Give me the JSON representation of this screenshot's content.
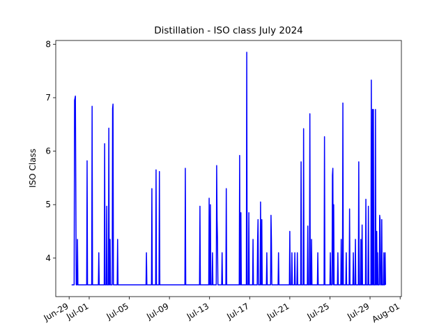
{
  "chart_data": {
    "type": "line",
    "title": "Distillation - ISO class July 2024",
    "y_label": "ISO Class",
    "color": "#0000ff",
    "xlim": [
      "2024-06-27T16:00",
      "2024-08-01T03:00"
    ],
    "ylim": [
      3.28,
      8.07
    ],
    "yticks": [
      4,
      5,
      6,
      7,
      8
    ],
    "xticks": [
      {
        "value": "2024-06-29T00:00",
        "label": "Jun-29"
      },
      {
        "value": "2024-07-01T00:00",
        "label": "Jul-01"
      },
      {
        "value": "2024-07-05T00:00",
        "label": "Jul-05"
      },
      {
        "value": "2024-07-09T00:00",
        "label": "Jul-09"
      },
      {
        "value": "2024-07-13T00:00",
        "label": "Jul-13"
      },
      {
        "value": "2024-07-17T00:00",
        "label": "Jul-17"
      },
      {
        "value": "2024-07-21T00:00",
        "label": "Jul-21"
      },
      {
        "value": "2024-07-25T00:00",
        "label": "Jul-25"
      },
      {
        "value": "2024-07-29T00:00",
        "label": "Jul-29"
      },
      {
        "value": "2024-08-01T00:00",
        "label": "Aug-01"
      }
    ],
    "x": [
      "2024-06-29T06:00",
      "2024-06-29T12:00",
      "2024-06-29T13:00",
      "2024-06-29T15:00",
      "2024-06-29T17:00",
      "2024-06-29T19:00",
      "2024-06-29T20:00",
      "2024-06-29T21:00",
      "2024-06-30T18:00",
      "2024-06-30T19:00",
      "2024-06-30T20:00",
      "2024-07-01T06:00",
      "2024-07-01T07:00",
      "2024-07-01T08:00",
      "2024-07-01T22:00",
      "2024-07-01T23:00",
      "2024-07-02T00:00",
      "2024-07-02T12:00",
      "2024-07-02T13:00",
      "2024-07-02T14:00",
      "2024-07-02T17:00",
      "2024-07-02T18:00",
      "2024-07-02T19:00",
      "2024-07-02T22:00",
      "2024-07-02T23:00",
      "2024-07-03T00:00",
      "2024-07-03T01:00",
      "2024-07-03T02:00",
      "2024-07-03T03:00",
      "2024-07-03T07:00",
      "2024-07-03T08:00",
      "2024-07-03T09:00",
      "2024-07-03T10:00",
      "2024-07-03T19:00",
      "2024-07-03T20:00",
      "2024-07-03T21:00",
      "2024-07-06T16:00",
      "2024-07-06T17:00",
      "2024-07-06T18:00",
      "2024-07-07T05:00",
      "2024-07-07T06:00",
      "2024-07-07T07:00",
      "2024-07-07T15:00",
      "2024-07-07T16:00",
      "2024-07-07T17:00",
      "2024-07-07T23:00",
      "2024-07-08T00:00",
      "2024-07-08T01:00",
      "2024-07-10T13:00",
      "2024-07-10T14:00",
      "2024-07-10T15:00",
      "2024-07-12T00:00",
      "2024-07-12T01:00",
      "2024-07-12T02:00",
      "2024-07-12T22:00",
      "2024-07-12T23:00",
      "2024-07-13T00:00",
      "2024-07-13T01:00",
      "2024-07-13T02:00",
      "2024-07-13T03:00",
      "2024-07-13T06:00",
      "2024-07-13T07:00",
      "2024-07-13T08:00",
      "2024-07-13T16:00",
      "2024-07-13T17:00",
      "2024-07-13T18:00",
      "2024-07-13T19:00",
      "2024-07-13T20:00",
      "2024-07-14T05:00",
      "2024-07-14T06:00",
      "2024-07-14T07:00",
      "2024-07-14T15:00",
      "2024-07-14T16:00",
      "2024-07-14T17:00",
      "2024-07-15T23:00",
      "2024-07-16T00:00",
      "2024-07-16T01:00",
      "2024-07-16T02:00",
      "2024-07-16T03:00",
      "2024-07-16T04:00",
      "2024-07-16T16:00",
      "2024-07-16T17:00",
      "2024-07-16T18:00",
      "2024-07-16T21:00",
      "2024-07-16T22:00",
      "2024-07-16T23:00",
      "2024-07-17T07:00",
      "2024-07-17T08:00",
      "2024-07-17T09:00",
      "2024-07-17T18:00",
      "2024-07-17T19:00",
      "2024-07-17T20:00",
      "2024-07-17T21:00",
      "2024-07-18T01:00",
      "2024-07-18T02:00",
      "2024-07-18T03:00",
      "2024-07-18T04:00",
      "2024-07-18T05:00",
      "2024-07-18T06:00",
      "2024-07-18T16:00",
      "2024-07-18T17:00",
      "2024-07-18T18:00",
      "2024-07-19T02:00",
      "2024-07-19T03:00",
      "2024-07-19T04:00",
      "2024-07-19T05:00",
      "2024-07-19T20:00",
      "2024-07-19T21:00",
      "2024-07-19T22:00",
      "2024-07-20T23:00",
      "2024-07-21T00:00",
      "2024-07-21T01:00",
      "2024-07-21T04:00",
      "2024-07-21T05:00",
      "2024-07-21T06:00",
      "2024-07-21T11:00",
      "2024-07-21T12:00",
      "2024-07-21T13:00",
      "2024-07-21T17:00",
      "2024-07-21T18:00",
      "2024-07-21T19:00",
      "2024-07-22T02:00",
      "2024-07-22T03:00",
      "2024-07-22T04:00",
      "2024-07-22T08:00",
      "2024-07-22T09:00",
      "2024-07-22T10:00",
      "2024-07-22T18:00",
      "2024-07-22T19:00",
      "2024-07-22T20:00",
      "2024-07-22T23:00",
      "2024-07-23T00:00",
      "2024-07-23T01:00",
      "2024-07-23T03:00",
      "2024-07-23T04:00",
      "2024-07-23T05:00",
      "2024-07-23T18:00",
      "2024-07-23T19:00",
      "2024-07-23T20:00",
      "2024-07-24T10:00",
      "2024-07-24T11:00",
      "2024-07-24T12:00",
      "2024-07-25T00:00",
      "2024-07-25T01:00",
      "2024-07-25T02:00",
      "2024-07-25T05:00",
      "2024-07-25T06:00",
      "2024-07-25T07:00",
      "2024-07-25T08:00",
      "2024-07-25T09:00",
      "2024-07-25T10:00",
      "2024-07-25T18:00",
      "2024-07-25T19:00",
      "2024-07-25T20:00",
      "2024-07-26T02:00",
      "2024-07-26T03:00",
      "2024-07-26T04:00",
      "2024-07-26T06:00",
      "2024-07-26T07:00",
      "2024-07-26T08:00",
      "2024-07-26T14:00",
      "2024-07-26T15:00",
      "2024-07-26T16:00",
      "2024-07-26T22:00",
      "2024-07-26T23:00",
      "2024-07-27T00:00",
      "2024-07-27T07:00",
      "2024-07-27T08:00",
      "2024-07-27T09:00",
      "2024-07-27T12:00",
      "2024-07-27T13:00",
      "2024-07-27T14:00",
      "2024-07-27T20:00",
      "2024-07-27T21:00",
      "2024-07-27T22:00",
      "2024-07-28T01:00",
      "2024-07-28T02:00",
      "2024-07-28T03:00",
      "2024-07-28T04:00",
      "2024-07-28T05:00",
      "2024-07-28T06:00",
      "2024-07-28T13:00",
      "2024-07-28T14:00",
      "2024-07-28T15:00",
      "2024-07-28T19:00",
      "2024-07-28T20:00",
      "2024-07-28T21:00",
      "2024-07-29T02:00",
      "2024-07-29T03:00",
      "2024-07-29T04:00",
      "2024-07-29T05:00",
      "2024-07-29T06:00",
      "2024-07-29T07:00",
      "2024-07-29T08:00",
      "2024-07-29T09:00",
      "2024-07-29T12:00",
      "2024-07-29T13:00",
      "2024-07-29T14:00",
      "2024-07-29T15:00",
      "2024-07-29T16:00",
      "2024-07-29T17:00",
      "2024-07-29T18:00",
      "2024-07-29T19:00",
      "2024-07-29T22:00",
      "2024-07-29T23:00",
      "2024-07-30T00:00",
      "2024-07-30T01:00",
      "2024-07-30T03:00",
      "2024-07-30T04:00",
      "2024-07-30T05:00",
      "2024-07-30T08:00",
      "2024-07-30T09:00",
      "2024-07-30T10:00",
      "2024-07-30T11:00",
      "2024-07-30T12:00",
      "2024-07-30T13:00"
    ],
    "values": [
      3.5,
      3.5,
      6.95,
      7.03,
      3.5,
      3.5,
      4.35,
      3.5,
      3.5,
      5.82,
      3.5,
      3.5,
      6.84,
      3.5,
      3.5,
      4.1,
      3.5,
      3.5,
      6.14,
      3.5,
      3.5,
      4.97,
      3.5,
      3.5,
      6.43,
      3.5,
      3.5,
      4.35,
      3.5,
      3.5,
      6.8,
      6.88,
      3.5,
      3.5,
      4.35,
      3.5,
      3.5,
      4.1,
      3.5,
      3.5,
      5.3,
      3.5,
      3.5,
      5.65,
      3.5,
      3.5,
      5.62,
      3.5,
      3.5,
      5.68,
      3.5,
      3.5,
      4.97,
      3.5,
      3.5,
      5.12,
      3.5,
      3.5,
      5.0,
      3.5,
      3.5,
      4.1,
      3.5,
      3.5,
      5.73,
      4.72,
      4.35,
      3.5,
      3.5,
      4.1,
      3.5,
      3.5,
      5.3,
      3.5,
      3.5,
      5.92,
      3.5,
      3.5,
      4.85,
      3.5,
      3.5,
      7.85,
      3.5,
      3.5,
      4.85,
      3.5,
      3.5,
      4.35,
      3.5,
      3.5,
      4.35,
      4.72,
      3.5,
      3.5,
      5.05,
      3.5,
      3.5,
      4.72,
      3.5,
      3.5,
      4.1,
      3.5,
      3.5,
      4.8,
      4.35,
      3.5,
      3.5,
      4.1,
      3.5,
      3.5,
      4.5,
      3.5,
      3.5,
      4.1,
      3.5,
      3.5,
      4.1,
      3.5,
      3.5,
      4.1,
      3.5,
      3.5,
      5.8,
      3.5,
      3.5,
      6.42,
      3.5,
      3.5,
      4.6,
      3.5,
      3.5,
      6.7,
      3.5,
      3.5,
      4.35,
      3.5,
      3.5,
      4.1,
      3.5,
      3.5,
      6.27,
      3.5,
      3.5,
      4.1,
      3.5,
      3.5,
      5.55,
      5.68,
      3.5,
      5.0,
      3.5,
      3.5,
      4.1,
      3.5,
      3.5,
      4.35,
      3.5,
      3.5,
      6.9,
      3.5,
      3.5,
      4.1,
      3.5,
      3.5,
      4.92,
      3.5,
      3.5,
      4.1,
      3.5,
      3.5,
      4.35,
      3.5,
      3.5,
      5.8,
      3.5,
      3.5,
      4.35,
      3.5,
      3.5,
      4.62,
      3.5,
      3.5,
      5.1,
      3.5,
      3.5,
      4.97,
      3.5,
      3.5,
      7.33,
      3.5,
      3.5,
      6.78,
      3.5,
      6.78,
      3.5,
      3.5,
      6.78,
      3.5,
      3.5,
      4.5,
      3.5,
      4.1,
      3.5,
      3.5,
      4.8,
      4.72,
      3.5,
      3.5,
      4.72,
      3.5,
      3.5,
      4.1,
      3.5,
      3.5,
      4.1,
      3.5
    ]
  }
}
